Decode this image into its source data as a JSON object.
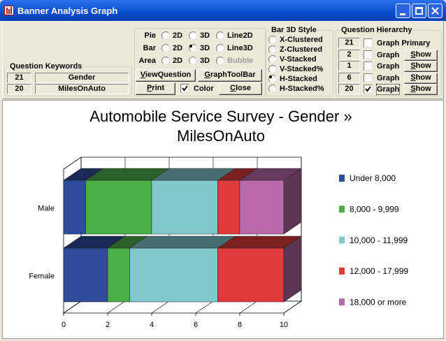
{
  "window": {
    "title": "Banner Analysis Graph"
  },
  "question_keywords": {
    "label": "Question Keywords",
    "rows": [
      [
        "21",
        "Gender"
      ],
      [
        "20",
        "MilesOnAuto"
      ]
    ]
  },
  "graph_type": {
    "rows": [
      {
        "label": "Pie",
        "options": [
          "2D",
          "3D",
          "Line2D"
        ]
      },
      {
        "label": "Bar",
        "options": [
          "2D",
          "3D",
          "Line3D"
        ]
      },
      {
        "label": "Area",
        "options": [
          "2D",
          "3D",
          "Bubble"
        ]
      }
    ],
    "selected": [
      1,
      1
    ],
    "disabled": [
      2,
      2
    ],
    "buttons": [
      "ViewQuestion",
      "GraphToolBar",
      "Print",
      "Close"
    ],
    "color_checkbox": {
      "label": "Color",
      "checked": true
    }
  },
  "bar_3d_style": {
    "label": "Bar 3D Style",
    "options": [
      "X-Clustered",
      "Z-Clustered",
      "V-Stacked",
      "V-Stacked%",
      "H-Stacked",
      "H-Stacked%"
    ],
    "selected": 4
  },
  "question_hierarchy": {
    "label": "Question Hierarchy",
    "rows": [
      {
        "number": "21",
        "checked": false,
        "text": "Graph Primary"
      },
      {
        "number": "2",
        "checked": false,
        "text": "Graph",
        "button": "Show"
      },
      {
        "number": "1",
        "checked": false,
        "text": "Graph",
        "button": "Show"
      },
      {
        "number": "6",
        "checked": false,
        "text": "Graph",
        "button": "Show"
      },
      {
        "number": "20",
        "checked": true,
        "text": "Graph",
        "button": "Show"
      }
    ]
  },
  "chart_data": {
    "type": "hbar3d_stacked",
    "title": [
      "Automobile Service Survey - Gender »",
      "MilesOnAuto"
    ],
    "categories": [
      "Male",
      "Female"
    ],
    "series": [
      {
        "name": "Under 8,000",
        "color": "#2f4c9c",
        "values": [
          1,
          2
        ]
      },
      {
        "name": "8,000 - 9,999",
        "color": "#4cb048",
        "values": [
          3,
          1
        ]
      },
      {
        "name": "10,000 - 11,999",
        "color": "#80c8cc",
        "values": [
          3,
          4
        ]
      },
      {
        "name": "12,000 - 17,999",
        "color": "#e03a3a",
        "values": [
          1,
          3
        ]
      },
      {
        "name": "18,000 or more",
        "color": "#b86aaa",
        "values": [
          2,
          0
        ]
      }
    ],
    "xlim": [
      0,
      10
    ],
    "xticks": [
      0,
      2,
      4,
      6,
      8,
      10
    ],
    "grid": true
  }
}
